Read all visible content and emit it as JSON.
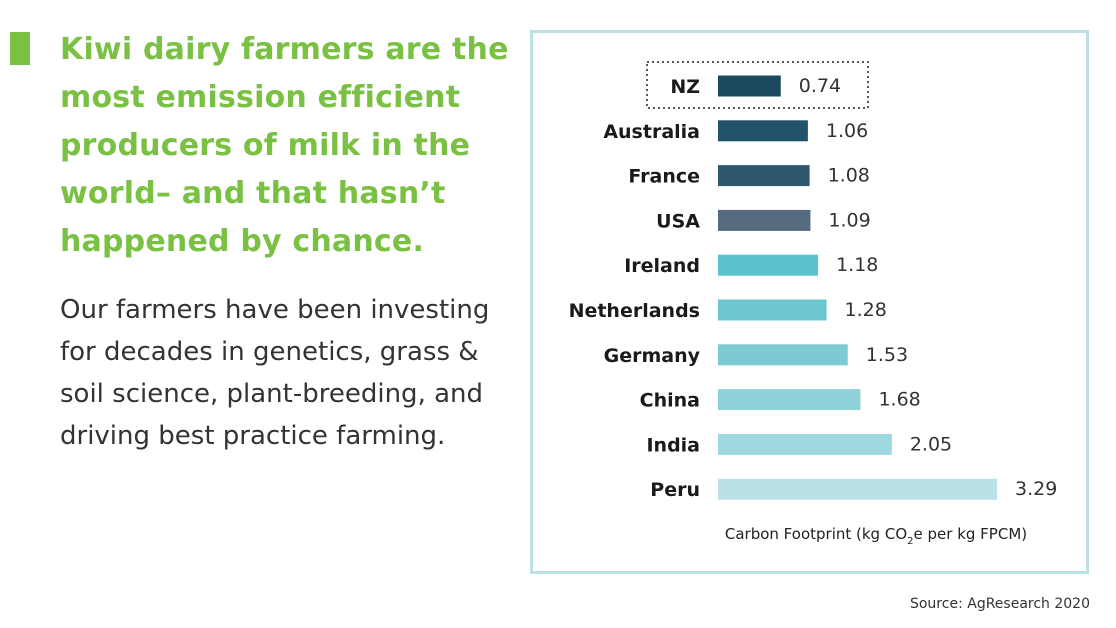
{
  "headline": "Kiwi dairy farmers are the most emission efficient producers of milk in the world– and that hasn’t happened by chance.",
  "body": "Our farmers have been investing for decades in genetics, grass & soil science, plant-breeding, and driving best practice farming.",
  "source": "Source: AgResearch 2020",
  "colors": {
    "accent": "#7ac143",
    "frame": "#b9e1e6"
  },
  "chart_data": {
    "type": "bar",
    "orientation": "horizontal",
    "categories": [
      "NZ",
      "Australia",
      "France",
      "USA",
      "Ireland",
      "Netherlands",
      "Germany",
      "China",
      "India",
      "Peru"
    ],
    "values": [
      0.74,
      1.06,
      1.08,
      1.09,
      1.18,
      1.28,
      1.53,
      1.68,
      2.05,
      3.29
    ],
    "value_labels": [
      "0.74",
      "1.06",
      "1.08",
      "1.09",
      "1.18",
      "1.28",
      "1.53",
      "1.68",
      "2.05",
      "3.29"
    ],
    "bar_colors": [
      "#1b4a5e",
      "#23536a",
      "#2d5870",
      "#566a80",
      "#5bc1ca",
      "#6cc6cf",
      "#7dcad3",
      "#8ed1d9",
      "#a0d8df",
      "#b9e1e6"
    ],
    "highlight": "NZ",
    "xlabel_main": "Carbon Footprint (kg CO",
    "xlabel_sub": "2",
    "xlabel_tail": "e per kg FPCM)",
    "xlim": [
      0,
      3.29
    ],
    "grid": false,
    "legend": "none"
  }
}
